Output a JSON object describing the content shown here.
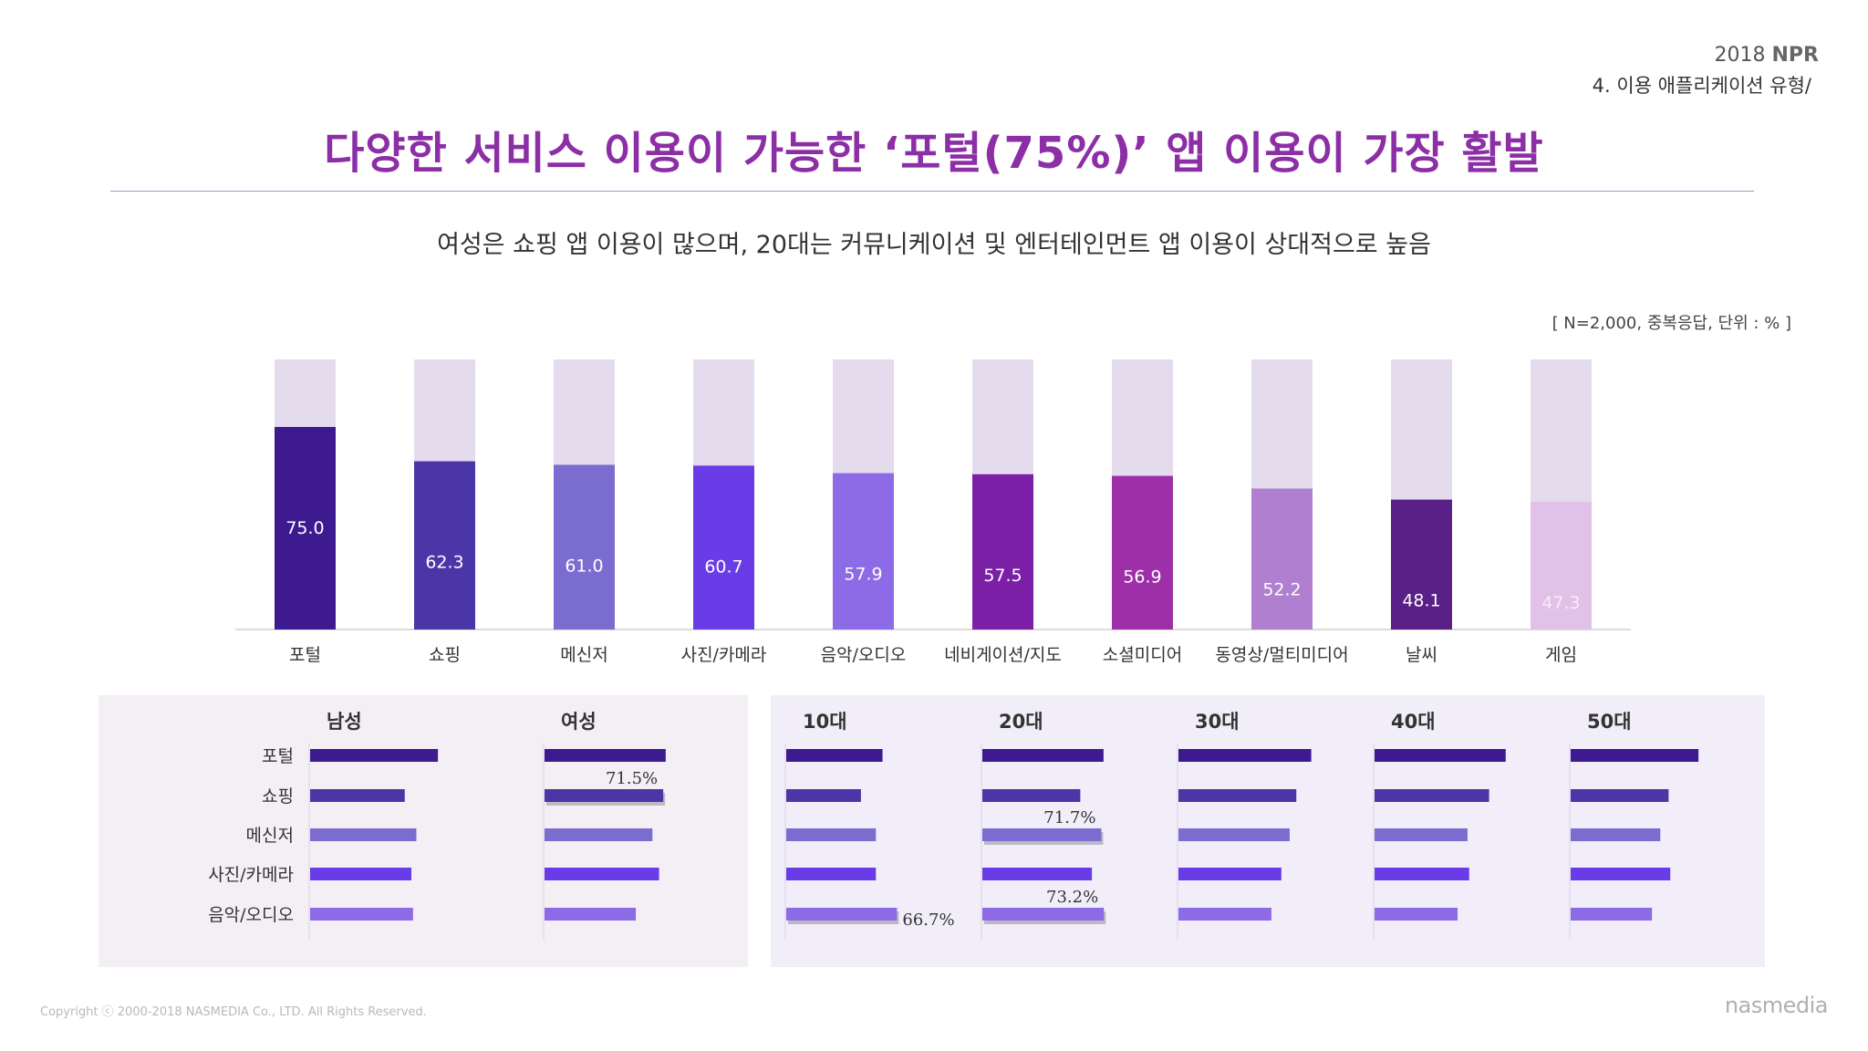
{
  "header": {
    "year": "2018",
    "brand": "NPR",
    "section": "4. 이용 애플리케이션 유형/"
  },
  "title": "다양한 서비스 이용이 가능한 ‘포털(75%)’ 앱 이용이 가장 활발",
  "subtitle": "여성은 쇼핑 앱 이용이 많으며, 20대는 커뮤니케이션 및 엔터테인먼트 앱 이용이 상대적으로 높음",
  "note": "[ N=2,000, 중복응답, 단위 : % ]",
  "footer": {
    "copyright": "Copyright ⓒ 2000-2018  NASMEDIA Co., LTD. All Rights Reserved.",
    "logo": "nasmedia"
  },
  "chart_data": [
    {
      "type": "bar",
      "categories": [
        "포털",
        "쇼핑",
        "메신저",
        "사진/카메라",
        "음악/오디오",
        "네비게이션/지도",
        "소셜미디어",
        "동영상/멀티미디어",
        "날씨",
        "게임"
      ],
      "values": [
        75.0,
        62.3,
        61.0,
        60.7,
        57.9,
        57.5,
        56.9,
        52.2,
        48.1,
        47.3
      ],
      "value_labels": [
        "75.0",
        "62.3",
        "61.0",
        "60.7",
        "57.9",
        "57.5",
        "56.9",
        "52.2",
        "48.1",
        "47.3"
      ],
      "bar_colors": [
        "#3d1a8f",
        "#4b36a8",
        "#7b6cd0",
        "#6a3ce8",
        "#8d6ae6",
        "#7b1fa6",
        "#9d2fa8",
        "#b07fd0",
        "#5b1f88",
        "#e2c1e8"
      ],
      "label_colors": [
        "#ffffff",
        "#ffffff",
        "#ffffff",
        "#ffffff",
        "#ffffff",
        "#ffffff",
        "#ffffff",
        "#ffffff",
        "#ffffff",
        "#f4eef8"
      ],
      "background_color": "#e4dced",
      "ylim": [
        0,
        100
      ],
      "grid": false
    },
    {
      "type": "bar",
      "orientation": "horizontal",
      "categories": [
        "포털",
        "쇼핑",
        "메신저",
        "사진/카메라",
        "음악/오디오"
      ],
      "bar_colors": [
        "#3d1a8f",
        "#4b36a8",
        "#7b6cd0",
        "#6a3ce8",
        "#8d6ae6"
      ],
      "xlim": [
        0,
        100
      ],
      "series": [
        {
          "name": "남성",
          "values": [
            77,
            57,
            64,
            61,
            62
          ]
        },
        {
          "name": "여성",
          "values": [
            73,
            71.5,
            65,
            69,
            55
          ]
        }
      ],
      "annotations": [
        {
          "series": "여성",
          "category": "쇼핑",
          "label": "71.5%"
        }
      ]
    },
    {
      "type": "bar",
      "orientation": "horizontal",
      "categories": [
        "포털",
        "쇼핑",
        "메신저",
        "사진/카메라",
        "음악/오디오"
      ],
      "bar_colors": [
        "#3d1a8f",
        "#4b36a8",
        "#7b6cd0",
        "#6a3ce8",
        "#8d6ae6"
      ],
      "xlim": [
        0,
        100
      ],
      "series": [
        {
          "name": "10대",
          "values": [
            58,
            45,
            54,
            54,
            66.7
          ]
        },
        {
          "name": "20대",
          "values": [
            73,
            59,
            71.7,
            66,
            73.2
          ]
        },
        {
          "name": "30대",
          "values": [
            80,
            71,
            67,
            62,
            56
          ]
        },
        {
          "name": "40대",
          "values": [
            79,
            69,
            56,
            57,
            50
          ]
        },
        {
          "name": "50대",
          "values": [
            77,
            59,
            54,
            60,
            49
          ]
        }
      ],
      "annotations": [
        {
          "series": "10대",
          "category": "음악/오디오",
          "label": "66.7%"
        },
        {
          "series": "20대",
          "category": "메신저",
          "label": "71.7%"
        },
        {
          "series": "20대",
          "category": "음악/오디오",
          "label": "73.2%"
        }
      ]
    }
  ]
}
